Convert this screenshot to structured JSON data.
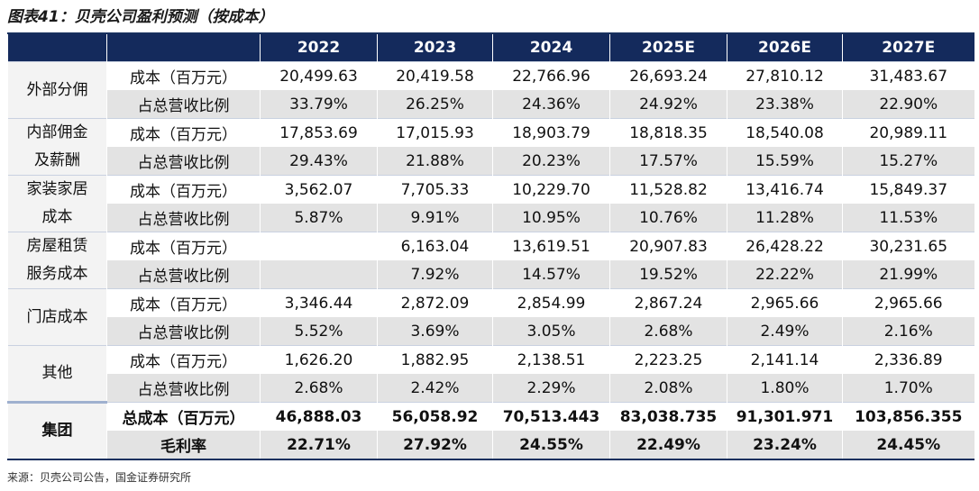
{
  "header": {
    "title": "图表41：贝壳公司盈利预测（按成本）"
  },
  "table": {
    "columns": [
      "2022",
      "2023",
      "2024",
      "2025E",
      "2026E",
      "2027E"
    ],
    "groups": [
      {
        "label": "外部分佣",
        "rows": [
          {
            "metric": "成本（百万元）",
            "values": [
              "20,499.63",
              "20,419.58",
              "22,766.96",
              "26,693.24",
              "27,810.12",
              "31,483.67"
            ]
          },
          {
            "metric": "占总营收比例",
            "values": [
              "33.79%",
              "26.25%",
              "24.36%",
              "24.92%",
              "23.38%",
              "22.90%"
            ]
          }
        ]
      },
      {
        "label": "内部佣金及薪酬",
        "rows": [
          {
            "metric": "成本（百万元）",
            "values": [
              "17,853.69",
              "17,015.93",
              "18,903.79",
              "18,818.35",
              "18,540.08",
              "20,989.11"
            ]
          },
          {
            "metric": "占总营收比例",
            "values": [
              "29.43%",
              "21.88%",
              "20.23%",
              "17.57%",
              "15.59%",
              "15.27%"
            ]
          }
        ]
      },
      {
        "label": "家装家居成本",
        "rows": [
          {
            "metric": "成本（百万元）",
            "values": [
              "3,562.07",
              "7,705.33",
              "10,229.70",
              "11,528.82",
              "13,416.74",
              "15,849.37"
            ]
          },
          {
            "metric": "占总营收比例",
            "values": [
              "5.87%",
              "9.91%",
              "10.95%",
              "10.76%",
              "11.28%",
              "11.53%"
            ]
          }
        ]
      },
      {
        "label": "房屋租赁服务成本",
        "rows": [
          {
            "metric": "成本（百万元）",
            "values": [
              null,
              "6,163.04",
              "13,619.51",
              "20,907.83",
              "26,428.22",
              "30,231.65"
            ]
          },
          {
            "metric": "占总营收比例",
            "values": [
              null,
              "7.92%",
              "14.57%",
              "19.52%",
              "22.22%",
              "21.99%"
            ]
          }
        ]
      },
      {
        "label": "门店成本",
        "rows": [
          {
            "metric": "成本（百万元）",
            "values": [
              "3,346.44",
              "2,872.09",
              "2,854.99",
              "2,867.24",
              "2,965.66",
              "2,965.66"
            ]
          },
          {
            "metric": "占总营收比例",
            "values": [
              "5.52%",
              "3.69%",
              "3.05%",
              "2.68%",
              "2.49%",
              "2.16%"
            ]
          }
        ]
      },
      {
        "label": "其他",
        "rows": [
          {
            "metric": "成本（百万元）",
            "values": [
              "1,626.20",
              "1,882.95",
              "2,138.51",
              "2,223.25",
              "2,141.14",
              "2,336.89"
            ]
          },
          {
            "metric": "占总营收比例",
            "values": [
              "2.68%",
              "2.42%",
              "2.29%",
              "2.08%",
              "1.80%",
              "1.70%"
            ]
          }
        ]
      },
      {
        "label": "集团",
        "rows": [
          {
            "metric": "总成本（百万元）",
            "values": [
              "46,888.03",
              "56,058.92",
              "70,513.443",
              "83,038.735",
              "91,301.971",
              "103,856.355"
            ]
          },
          {
            "metric": "毛利率",
            "values": [
              "22.71%",
              "27.92%",
              "24.55%",
              "22.49%",
              "23.24%",
              "24.45%"
            ]
          }
        ]
      }
    ]
  },
  "footer": {
    "source": "来源：贝壳公司公告，国金证券研究所"
  }
}
